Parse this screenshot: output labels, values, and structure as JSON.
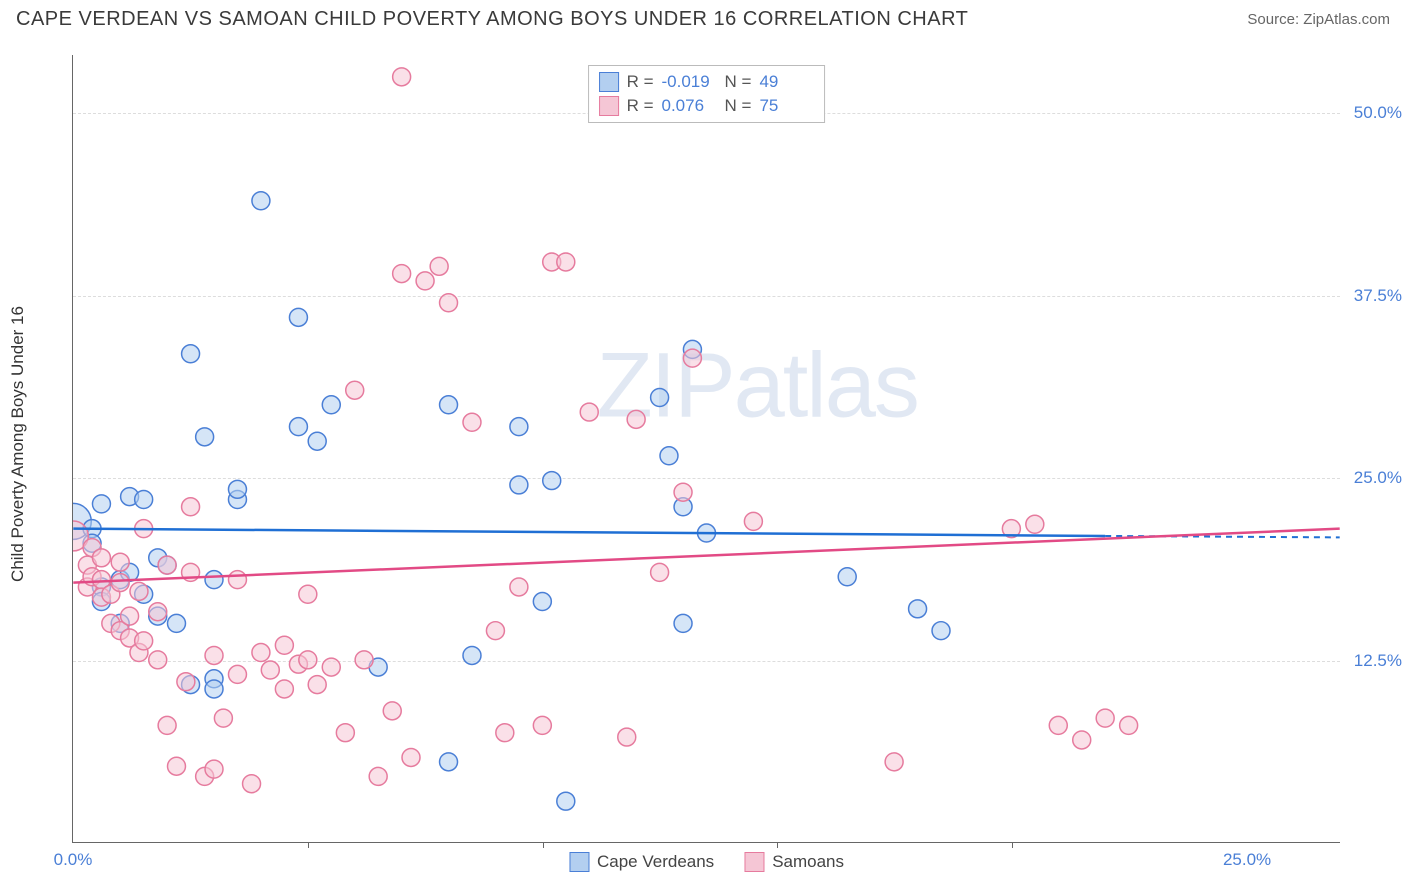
{
  "header": {
    "title": "CAPE VERDEAN VS SAMOAN CHILD POVERTY AMONG BOYS UNDER 16 CORRELATION CHART",
    "source_label": "Source: ",
    "source_value": "ZipAtlas.com"
  },
  "chart": {
    "type": "scatter",
    "y_axis_label": "Child Poverty Among Boys Under 16",
    "background_color": "#ffffff",
    "grid_color": "#dddddd",
    "axis_color": "#666666",
    "tick_label_color": "#4a7fd6",
    "xlim": [
      0,
      27
    ],
    "ylim": [
      0,
      54
    ],
    "y_ticks": [
      {
        "value": 12.5,
        "label": "12.5%"
      },
      {
        "value": 25.0,
        "label": "25.0%"
      },
      {
        "value": 37.5,
        "label": "37.5%"
      },
      {
        "value": 50.0,
        "label": "50.0%"
      }
    ],
    "x_ticks": [
      {
        "value": 0,
        "label": "0.0%"
      },
      {
        "value": 25,
        "label": "25.0%"
      }
    ],
    "x_minor_ticks": [
      5,
      10,
      15,
      20
    ],
    "marker_radius": 9,
    "marker_opacity": 0.55,
    "series": [
      {
        "name": "Cape Verdeans",
        "fill_color": "#b3cff0",
        "stroke_color": "#4a7fd6",
        "line_color": "#1f6fd4",
        "R": "-0.019",
        "N": "49",
        "trend": {
          "x1": 0,
          "y1": 21.5,
          "x2": 22,
          "y2": 21.0,
          "dash_x2": 27,
          "dash_y2": 20.9
        },
        "points": [
          [
            0,
            22,
            18
          ],
          [
            0.4,
            21.5,
            9
          ],
          [
            0.4,
            20.5,
            9
          ],
          [
            0.6,
            23.2,
            9
          ],
          [
            0.6,
            17.5,
            9
          ],
          [
            0.6,
            16.5,
            9
          ],
          [
            1.0,
            18.0,
            9
          ],
          [
            1.0,
            15.0,
            9
          ],
          [
            1.2,
            18.5,
            9
          ],
          [
            1.2,
            23.7,
            9
          ],
          [
            1.5,
            17.0,
            9
          ],
          [
            1.5,
            23.5,
            9
          ],
          [
            1.8,
            15.5,
            9
          ],
          [
            1.8,
            19.5,
            9
          ],
          [
            2.0,
            19.0,
            9
          ],
          [
            2.2,
            15.0,
            9
          ],
          [
            2.5,
            33.5,
            9
          ],
          [
            2.5,
            10.8,
            9
          ],
          [
            2.8,
            27.8,
            9
          ],
          [
            3.0,
            18.0,
            9
          ],
          [
            3.0,
            11.2,
            9
          ],
          [
            3.0,
            10.5,
            9
          ],
          [
            3.5,
            23.5,
            9
          ],
          [
            3.5,
            24.2,
            9
          ],
          [
            4.0,
            44.0,
            9
          ],
          [
            4.8,
            36.0,
            9
          ],
          [
            4.8,
            28.5,
            9
          ],
          [
            5.2,
            27.5,
            9
          ],
          [
            5.5,
            30.0,
            9
          ],
          [
            6.5,
            12.0,
            9
          ],
          [
            8.0,
            30.0,
            9
          ],
          [
            8.0,
            5.5,
            9
          ],
          [
            8.5,
            12.8,
            9
          ],
          [
            9.5,
            28.5,
            9
          ],
          [
            9.5,
            24.5,
            9
          ],
          [
            10.0,
            16.5,
            9
          ],
          [
            10.2,
            24.8,
            9
          ],
          [
            10.5,
            2.8,
            9
          ],
          [
            12.5,
            30.5,
            9
          ],
          [
            12.7,
            26.5,
            9
          ],
          [
            13.0,
            23.0,
            9
          ],
          [
            13.0,
            15.0,
            9
          ],
          [
            13.2,
            33.8,
            9
          ],
          [
            13.5,
            21.2,
            9
          ],
          [
            16.5,
            18.2,
            9
          ],
          [
            18.0,
            16.0,
            9
          ],
          [
            18.5,
            14.5,
            9
          ]
        ]
      },
      {
        "name": "Samoans",
        "fill_color": "#f5c6d5",
        "stroke_color": "#e67b9e",
        "line_color": "#e24a85",
        "R": "0.076",
        "N": "75",
        "trend": {
          "x1": 0,
          "y1": 17.8,
          "x2": 27,
          "y2": 21.5
        },
        "points": [
          [
            0,
            21,
            15
          ],
          [
            0.3,
            19.0,
            9
          ],
          [
            0.3,
            17.5,
            9
          ],
          [
            0.4,
            18.2,
            9
          ],
          [
            0.4,
            20.2,
            9
          ],
          [
            0.6,
            19.5,
            9
          ],
          [
            0.6,
            18.0,
            9
          ],
          [
            0.6,
            16.8,
            9
          ],
          [
            0.8,
            15.0,
            9
          ],
          [
            0.8,
            17.0,
            9
          ],
          [
            1.0,
            17.8,
            9
          ],
          [
            1.0,
            14.5,
            9
          ],
          [
            1.0,
            19.2,
            9
          ],
          [
            1.2,
            14.0,
            9
          ],
          [
            1.2,
            15.5,
            9
          ],
          [
            1.4,
            13.0,
            9
          ],
          [
            1.4,
            17.2,
            9
          ],
          [
            1.5,
            13.8,
            9
          ],
          [
            1.5,
            21.5,
            9
          ],
          [
            1.8,
            12.5,
            9
          ],
          [
            1.8,
            15.8,
            9
          ],
          [
            2.0,
            19.0,
            9
          ],
          [
            2.0,
            8.0,
            9
          ],
          [
            2.2,
            5.2,
            9
          ],
          [
            2.4,
            11.0,
            9
          ],
          [
            2.5,
            18.5,
            9
          ],
          [
            2.5,
            23.0,
            9
          ],
          [
            2.8,
            4.5,
            9
          ],
          [
            3.0,
            5.0,
            9
          ],
          [
            3.0,
            12.8,
            9
          ],
          [
            3.2,
            8.5,
            9
          ],
          [
            3.5,
            11.5,
            9
          ],
          [
            3.5,
            18.0,
            9
          ],
          [
            3.8,
            4.0,
            9
          ],
          [
            4.0,
            13.0,
            9
          ],
          [
            4.2,
            11.8,
            9
          ],
          [
            4.5,
            10.5,
            9
          ],
          [
            4.5,
            13.5,
            9
          ],
          [
            4.8,
            12.2,
            9
          ],
          [
            5.0,
            12.5,
            9
          ],
          [
            5.0,
            17.0,
            9
          ],
          [
            5.2,
            10.8,
            9
          ],
          [
            5.5,
            12.0,
            9
          ],
          [
            5.8,
            7.5,
            9
          ],
          [
            6.0,
            31.0,
            9
          ],
          [
            6.2,
            12.5,
            9
          ],
          [
            6.5,
            4.5,
            9
          ],
          [
            6.8,
            9.0,
            9
          ],
          [
            7.0,
            52.5,
            9
          ],
          [
            7.0,
            39.0,
            9
          ],
          [
            7.2,
            5.8,
            9
          ],
          [
            7.5,
            38.5,
            9
          ],
          [
            7.8,
            39.5,
            9
          ],
          [
            8.0,
            37.0,
            9
          ],
          [
            8.5,
            28.8,
            9
          ],
          [
            9.0,
            14.5,
            9
          ],
          [
            9.2,
            7.5,
            9
          ],
          [
            9.5,
            17.5,
            9
          ],
          [
            10.0,
            8.0,
            9
          ],
          [
            10.2,
            39.8,
            9
          ],
          [
            10.5,
            39.8,
            9
          ],
          [
            11.0,
            29.5,
            9
          ],
          [
            11.8,
            7.2,
            9
          ],
          [
            12.0,
            29.0,
            9
          ],
          [
            12.5,
            18.5,
            9
          ],
          [
            13.0,
            24.0,
            9
          ],
          [
            13.2,
            33.2,
            9
          ],
          [
            14.5,
            22.0,
            9
          ],
          [
            17.5,
            5.5,
            9
          ],
          [
            20.0,
            21.5,
            9
          ],
          [
            20.5,
            21.8,
            9
          ],
          [
            21.0,
            8.0,
            9
          ],
          [
            21.5,
            7.0,
            9
          ],
          [
            22.0,
            8.5,
            9
          ],
          [
            22.5,
            8.0,
            9
          ]
        ]
      }
    ],
    "watermark": {
      "part1": "ZIP",
      "part2": "atlas"
    }
  }
}
